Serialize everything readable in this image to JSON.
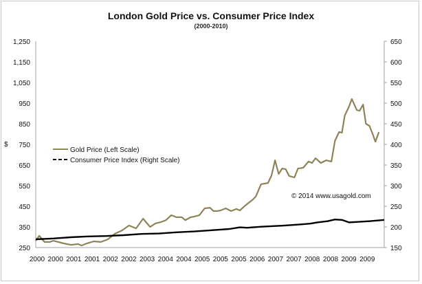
{
  "chart_data": {
    "type": "line",
    "title": "London Gold Price vs. Consumer Price Index",
    "subtitle": "(2000-2010)",
    "ylabel": "$",
    "ylabel_right": "",
    "xlabel": "",
    "x_tick_labels": [
      "2000",
      "2000",
      "2001",
      "2001",
      "2002",
      "2002",
      "2003",
      "2004",
      "2004",
      "2005",
      "2005",
      "2005",
      "2006",
      "2007",
      "2007",
      "2008",
      "2008",
      "2009",
      "2009"
    ],
    "y_left": {
      "min": 250,
      "max": 1250,
      "ticks": [
        250,
        350,
        450,
        550,
        650,
        750,
        850,
        950,
        1050,
        1150,
        1250
      ],
      "tick_labels": [
        "250",
        "350",
        "450",
        "550",
        "650",
        "750",
        "850",
        "950",
        "1,050",
        "1,150",
        "1,250"
      ]
    },
    "y_right": {
      "min": 150,
      "max": 650,
      "ticks": [
        150,
        200,
        250,
        300,
        350,
        400,
        450,
        500,
        550,
        600,
        650
      ],
      "tick_labels": [
        "150",
        "200",
        "250",
        "300",
        "350",
        "400",
        "450",
        "500",
        "550",
        "600",
        "650"
      ]
    },
    "x_range": [
      2000.0,
      2009.9
    ],
    "grid": false,
    "legend_position": "left",
    "annotation": "© 2014 www.usagold.com",
    "series": [
      {
        "name": "Gold Price (Left Scale)",
        "axis": "left",
        "color": "#8c8358",
        "points": [
          [
            2000.0,
            283
          ],
          [
            2000.1,
            307
          ],
          [
            2000.25,
            277
          ],
          [
            2000.4,
            277
          ],
          [
            2000.5,
            283
          ],
          [
            2000.8,
            270
          ],
          [
            2001.0,
            263
          ],
          [
            2001.2,
            267
          ],
          [
            2001.3,
            260
          ],
          [
            2001.45,
            270
          ],
          [
            2001.65,
            280
          ],
          [
            2001.85,
            277
          ],
          [
            2002.05,
            290
          ],
          [
            2002.25,
            317
          ],
          [
            2002.45,
            333
          ],
          [
            2002.65,
            357
          ],
          [
            2002.85,
            343
          ],
          [
            2003.05,
            390
          ],
          [
            2003.25,
            350
          ],
          [
            2003.4,
            367
          ],
          [
            2003.55,
            373
          ],
          [
            2003.7,
            383
          ],
          [
            2003.85,
            407
          ],
          [
            2004.0,
            397
          ],
          [
            2004.15,
            397
          ],
          [
            2004.25,
            383
          ],
          [
            2004.4,
            397
          ],
          [
            2004.5,
            400
          ],
          [
            2004.65,
            407
          ],
          [
            2004.8,
            440
          ],
          [
            2004.95,
            443
          ],
          [
            2005.05,
            427
          ],
          [
            2005.15,
            427
          ],
          [
            2005.25,
            430
          ],
          [
            2005.4,
            440
          ],
          [
            2005.55,
            427
          ],
          [
            2005.7,
            437
          ],
          [
            2005.8,
            430
          ],
          [
            2005.95,
            453
          ],
          [
            2006.05,
            467
          ],
          [
            2006.15,
            480
          ],
          [
            2006.25,
            497
          ],
          [
            2006.4,
            557
          ],
          [
            2006.5,
            560
          ],
          [
            2006.6,
            563
          ],
          [
            2006.7,
            600
          ],
          [
            2006.8,
            673
          ],
          [
            2006.9,
            607
          ],
          [
            2007.0,
            633
          ],
          [
            2007.1,
            630
          ],
          [
            2007.2,
            597
          ],
          [
            2007.35,
            590
          ],
          [
            2007.45,
            633
          ],
          [
            2007.6,
            637
          ],
          [
            2007.75,
            667
          ],
          [
            2007.85,
            660
          ],
          [
            2007.95,
            683
          ],
          [
            2008.1,
            660
          ],
          [
            2008.25,
            673
          ],
          [
            2008.4,
            667
          ],
          [
            2008.5,
            767
          ],
          [
            2008.62,
            810
          ],
          [
            2008.7,
            807
          ],
          [
            2008.78,
            890
          ],
          [
            2008.9,
            933
          ],
          [
            2008.98,
            970
          ],
          [
            2009.05,
            943
          ],
          [
            2009.12,
            917
          ],
          [
            2009.2,
            913
          ],
          [
            2009.3,
            943
          ],
          [
            2009.38,
            850
          ],
          [
            2009.48,
            840
          ],
          [
            2009.58,
            797
          ],
          [
            2009.65,
            763
          ],
          [
            2009.75,
            810
          ]
        ]
      },
      {
        "name": "Consumer Price Index (Right Scale)",
        "axis": "right",
        "color": "#000000",
        "points": [
          [
            2000.0,
            170
          ],
          [
            2000.5,
            172
          ],
          [
            2001.0,
            175
          ],
          [
            2001.5,
            177
          ],
          [
            2002.0,
            178
          ],
          [
            2002.5,
            180
          ],
          [
            2003.0,
            183
          ],
          [
            2003.5,
            184
          ],
          [
            2004.0,
            187
          ],
          [
            2004.5,
            189
          ],
          [
            2005.0,
            192
          ],
          [
            2005.5,
            195
          ],
          [
            2005.8,
            199
          ],
          [
            2006.0,
            198
          ],
          [
            2006.5,
            201
          ],
          [
            2007.0,
            203
          ],
          [
            2007.5,
            206
          ],
          [
            2007.8,
            208
          ],
          [
            2008.0,
            211
          ],
          [
            2008.3,
            214
          ],
          [
            2008.5,
            218
          ],
          [
            2008.7,
            217
          ],
          [
            2008.9,
            211
          ],
          [
            2009.1,
            212
          ],
          [
            2009.5,
            214
          ],
          [
            2009.9,
            217
          ]
        ]
      }
    ]
  }
}
